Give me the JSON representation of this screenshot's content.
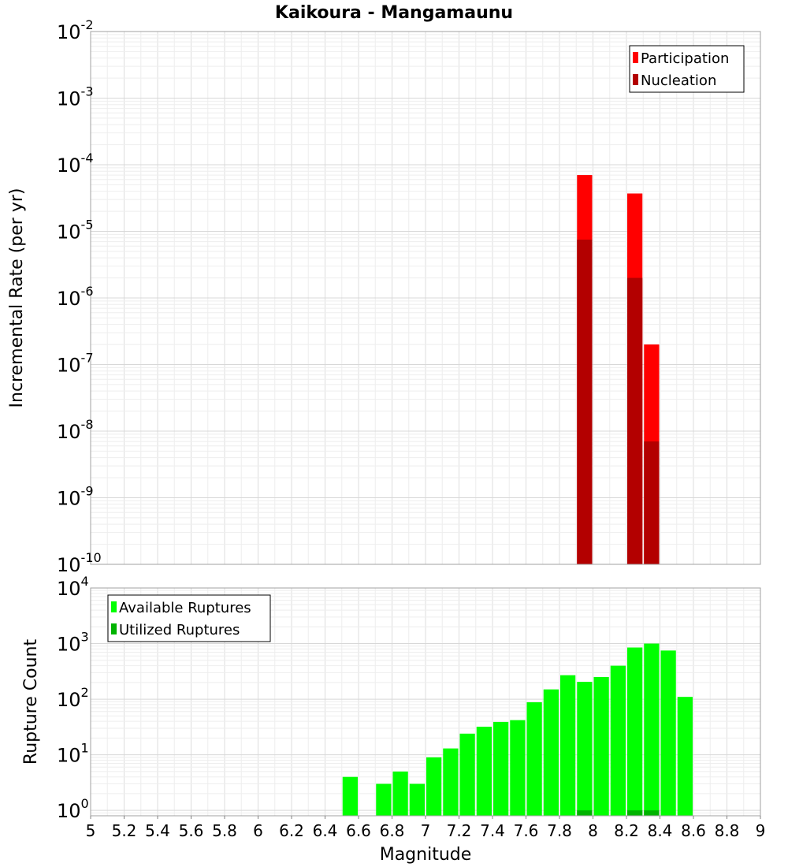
{
  "chart_data": [
    {
      "type": "bar",
      "title": "Kaikoura - Mangamaunu",
      "xlabel": "",
      "ylabel": "Incremental Rate (per yr)",
      "yscale": "log",
      "ylim": [
        1e-10,
        0.01
      ],
      "xlim": [
        5,
        9
      ],
      "bin_width": 0.1,
      "y_tick_labels": [
        {
          "base": "10",
          "exp": "-10"
        },
        {
          "base": "10",
          "exp": "-9"
        },
        {
          "base": "10",
          "exp": "-8"
        },
        {
          "base": "10",
          "exp": "-7"
        },
        {
          "base": "10",
          "exp": "-6"
        },
        {
          "base": "10",
          "exp": "-5"
        },
        {
          "base": "10",
          "exp": "-4"
        },
        {
          "base": "10",
          "exp": "-3"
        },
        {
          "base": "10",
          "exp": "-2"
        }
      ],
      "legend_position": "top-right",
      "legend": [
        "Participation",
        "Nucleation"
      ],
      "series": [
        {
          "name": "Participation",
          "color": "#ff0000",
          "x": [
            7.95,
            8.25,
            8.35
          ],
          "values": [
            7e-05,
            3.7e-05,
            2e-07
          ]
        },
        {
          "name": "Nucleation",
          "color": "#b30000",
          "x": [
            7.95,
            8.25,
            8.35
          ],
          "values": [
            7.5e-06,
            2e-06,
            7e-09
          ]
        }
      ],
      "grid": true
    },
    {
      "type": "bar",
      "title": "",
      "xlabel": "Magnitude",
      "ylabel": "Rupture Count",
      "yscale": "log",
      "ylim": [
        0.8,
        10000.0
      ],
      "xlim": [
        5,
        9
      ],
      "bin_width": 0.1,
      "y_tick_labels": [
        {
          "base": "10",
          "exp": "0"
        },
        {
          "base": "10",
          "exp": "1"
        },
        {
          "base": "10",
          "exp": "2"
        },
        {
          "base": "10",
          "exp": "3"
        },
        {
          "base": "10",
          "exp": "4"
        }
      ],
      "x_tick_labels": [
        "5",
        "5.2",
        "5.4",
        "5.6",
        "5.8",
        "6",
        "6.2",
        "6.4",
        "6.6",
        "6.8",
        "7",
        "7.2",
        "7.4",
        "7.6",
        "7.8",
        "8",
        "8.2",
        "8.4",
        "8.6",
        "8.8",
        "9"
      ],
      "legend_position": "top-left",
      "legend": [
        "Available Ruptures",
        "Utilized Ruptures"
      ],
      "series": [
        {
          "name": "Available Ruptures",
          "color": "#00ff00",
          "x": [
            6.55,
            6.75,
            6.85,
            6.95,
            7.05,
            7.15,
            7.25,
            7.35,
            7.45,
            7.55,
            7.65,
            7.75,
            7.85,
            7.95,
            8.05,
            8.15,
            8.25,
            8.35,
            8.45,
            8.55
          ],
          "values": [
            4,
            3,
            5,
            3,
            9,
            13,
            24,
            32,
            39,
            42,
            88,
            150,
            270,
            205,
            250,
            400,
            850,
            1000,
            750,
            110
          ]
        },
        {
          "name": "Utilized Ruptures",
          "color": "#00b300",
          "x": [
            7.95,
            8.25,
            8.35
          ],
          "values": [
            1,
            1,
            1
          ]
        }
      ],
      "grid": true
    }
  ]
}
